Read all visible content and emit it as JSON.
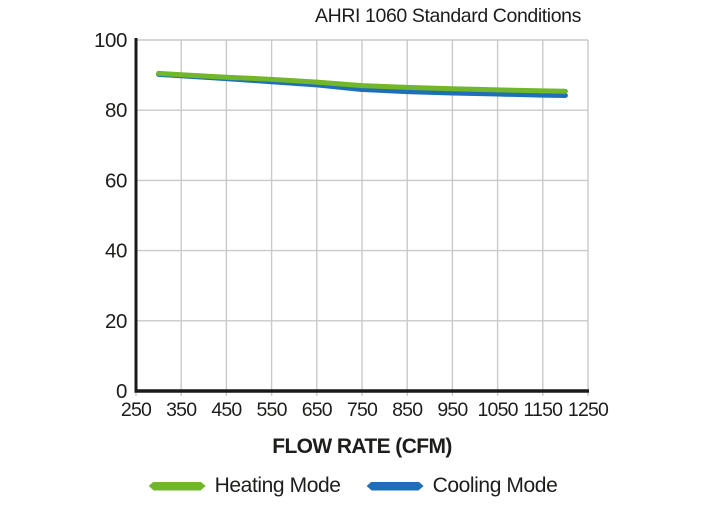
{
  "chart_data": {
    "type": "line",
    "title": "AHRI 1060 Standard Conditions",
    "xlabel": "FLOW RATE (CFM)",
    "ylabel": "",
    "xlim": [
      250,
      1250
    ],
    "ylim": [
      0,
      100
    ],
    "x_ticks": [
      250,
      350,
      450,
      550,
      650,
      750,
      850,
      950,
      1050,
      1150,
      1250
    ],
    "y_ticks": [
      0,
      20,
      40,
      60,
      80,
      100
    ],
    "grid": true,
    "legend_position": "bottom",
    "x": [
      300,
      350,
      450,
      550,
      650,
      750,
      850,
      950,
      1050,
      1150,
      1200
    ],
    "series": [
      {
        "name": "Heating Mode",
        "color": "#72b62c",
        "values": [
          90.5,
          90.1,
          89.4,
          88.8,
          88.0,
          87.0,
          86.5,
          86.1,
          85.8,
          85.5,
          85.4
        ]
      },
      {
        "name": "Cooling Mode",
        "color": "#1d6fb8",
        "values": [
          90.2,
          89.8,
          89.0,
          88.1,
          87.2,
          85.9,
          85.3,
          84.9,
          84.6,
          84.3,
          84.2
        ]
      }
    ]
  },
  "style": {
    "gridline_color": "#c9c9c9",
    "axis_color": "#1a1a1a",
    "text_color": "#1d1d1b",
    "background": "#ffffff"
  }
}
